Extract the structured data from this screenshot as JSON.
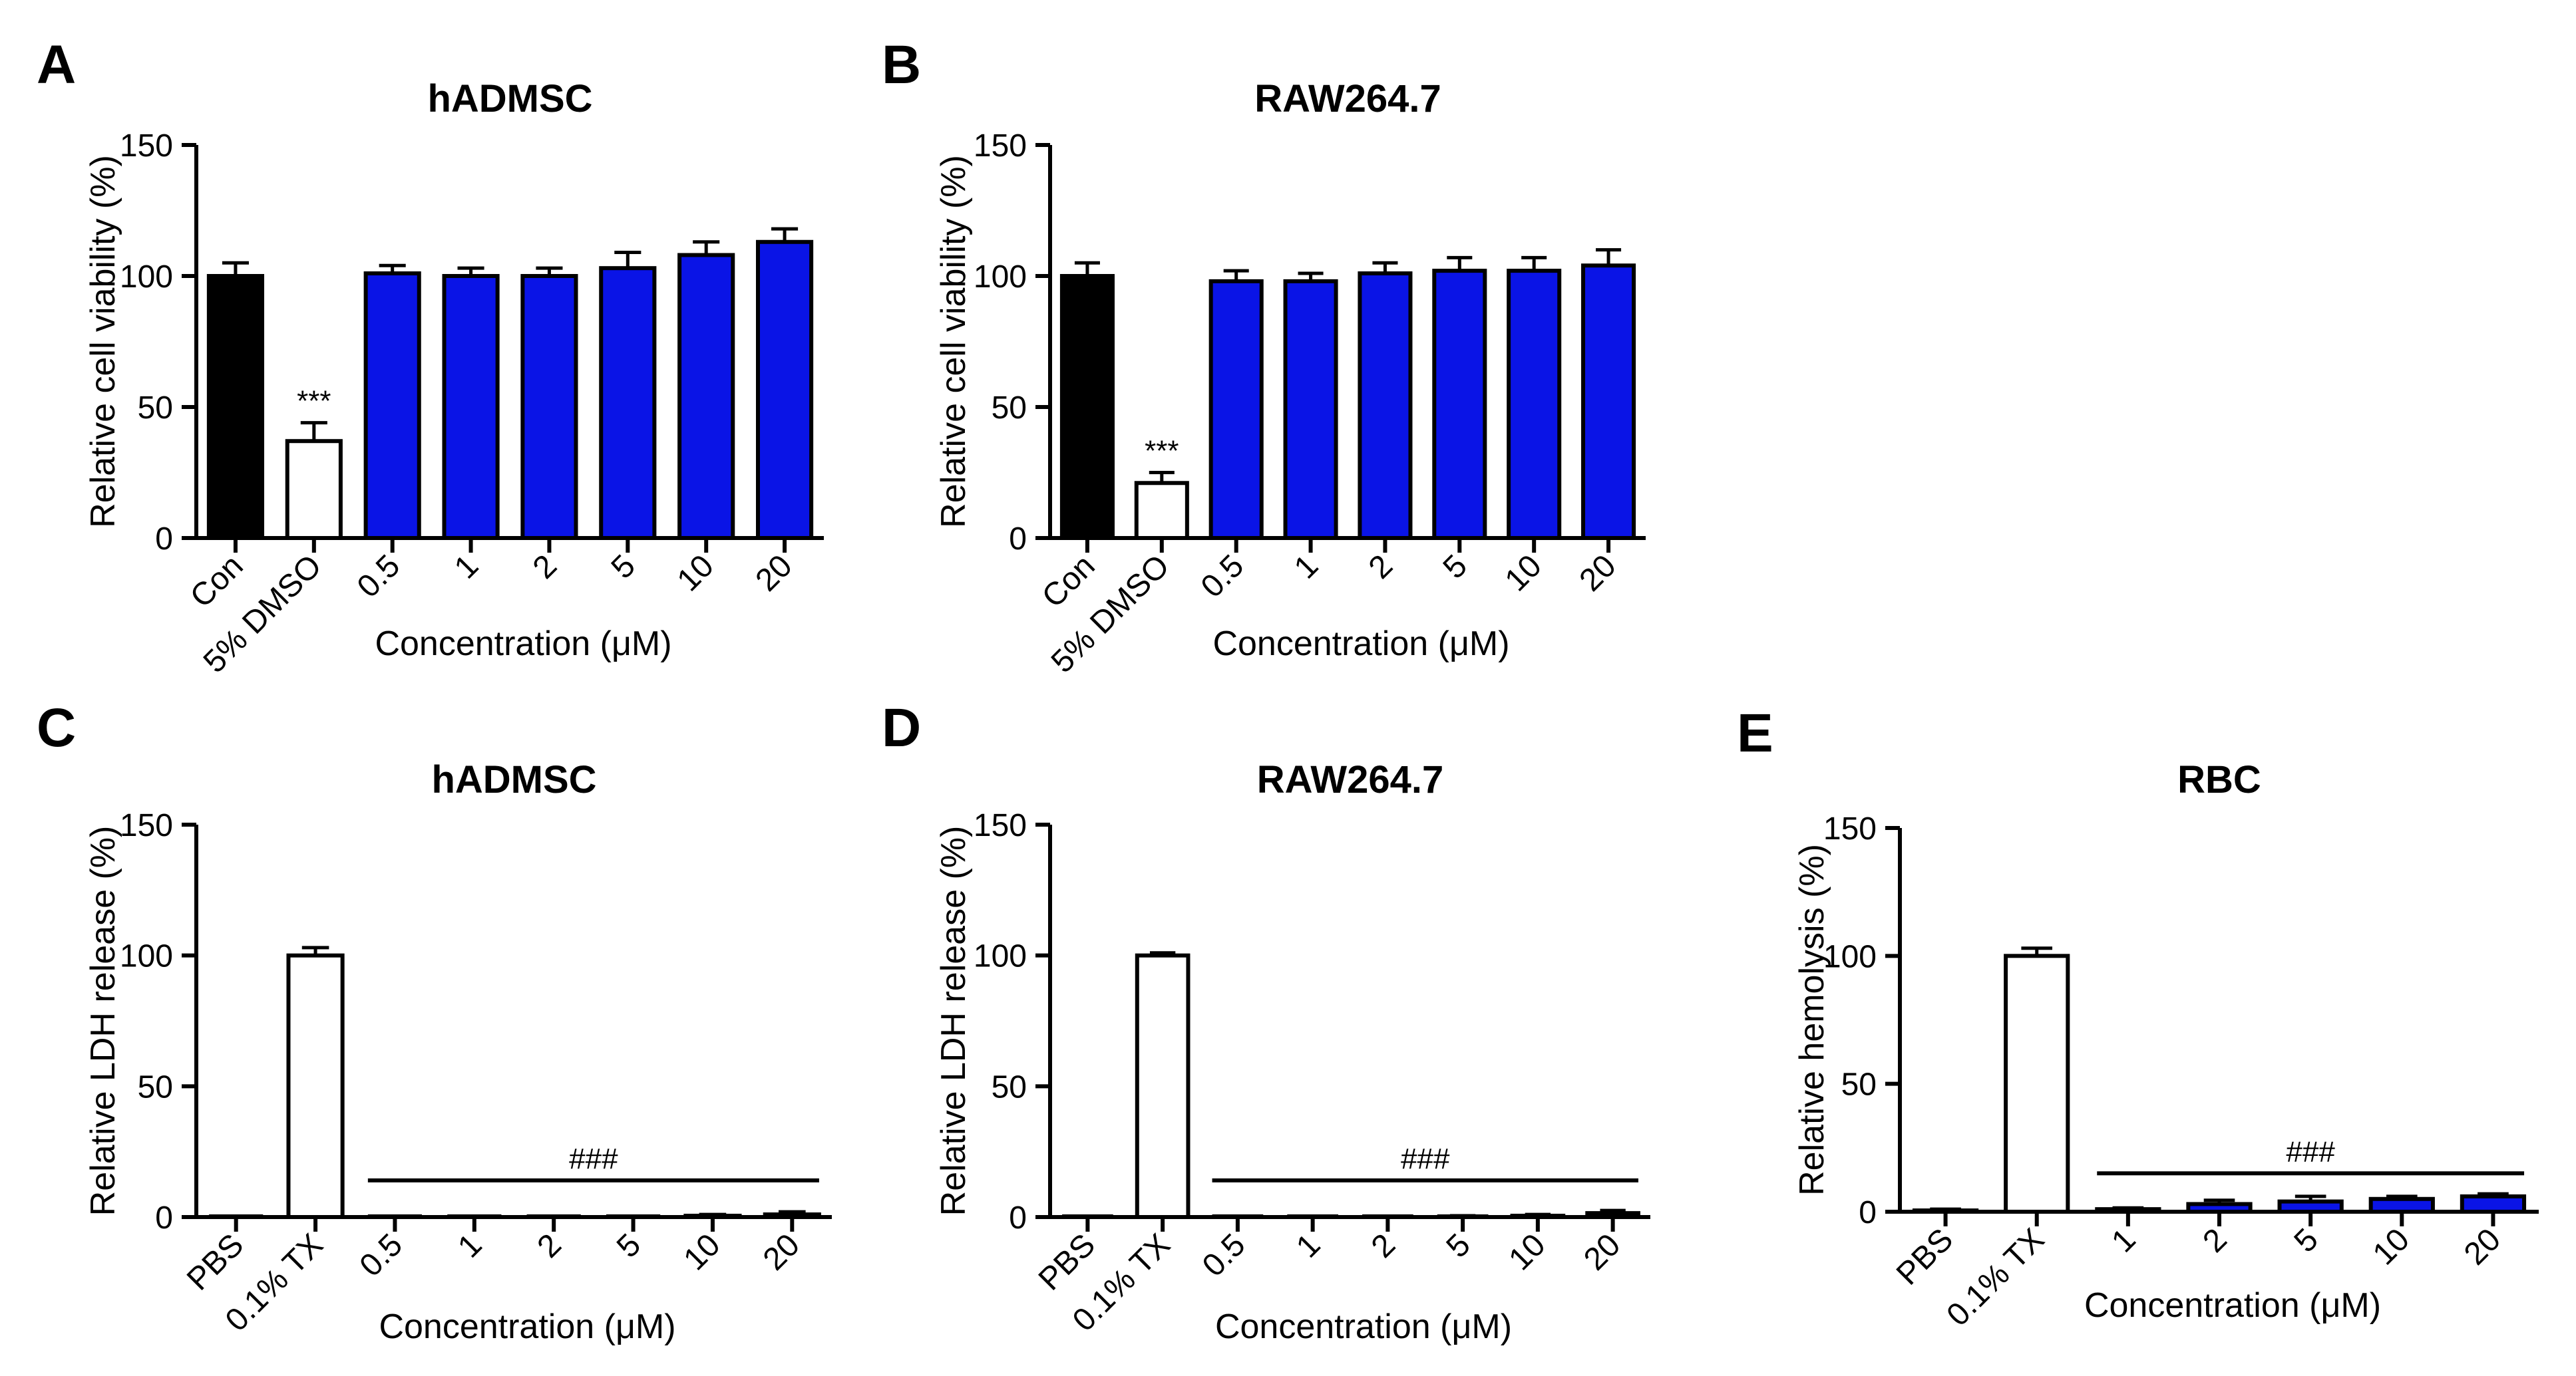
{
  "chart_data": [
    {
      "panel": "A",
      "type": "bar",
      "title": "hADMSC",
      "xlabel": "Concentration (μM)",
      "ylabel": "Relative cell viability (%)",
      "ylim": [
        0,
        150
      ],
      "yticks": [
        "0",
        "50",
        "100",
        "150"
      ],
      "categories": [
        "Con",
        "5% DMSO",
        "0.5",
        "1",
        "2",
        "5",
        "10",
        "20"
      ],
      "values": [
        100,
        37,
        101,
        100,
        100,
        103,
        108,
        113
      ],
      "errors": [
        5,
        7,
        3,
        3,
        3,
        6,
        5,
        5
      ],
      "colors": [
        "#000000",
        "#ffffff",
        "#0a14e6",
        "#0a14e6",
        "#0a14e6",
        "#0a14e6",
        "#0a14e6",
        "#0a14e6"
      ],
      "annotations": [
        {
          "text": "***",
          "category_index": 1
        }
      ]
    },
    {
      "panel": "B",
      "type": "bar",
      "title": "RAW264.7",
      "xlabel": "Concentration (μM)",
      "ylabel": "Relative cell viability (%)",
      "ylim": [
        0,
        150
      ],
      "yticks": [
        "0",
        "50",
        "100",
        "150"
      ],
      "categories": [
        "Con",
        "5% DMSO",
        "0.5",
        "1",
        "2",
        "5",
        "10",
        "20"
      ],
      "values": [
        100,
        21,
        98,
        98,
        101,
        102,
        102,
        104
      ],
      "errors": [
        5,
        4,
        4,
        3,
        4,
        5,
        5,
        6
      ],
      "colors": [
        "#000000",
        "#ffffff",
        "#0a14e6",
        "#0a14e6",
        "#0a14e6",
        "#0a14e6",
        "#0a14e6",
        "#0a14e6"
      ],
      "annotations": [
        {
          "text": "***",
          "category_index": 1
        }
      ]
    },
    {
      "panel": "C",
      "type": "bar",
      "title": "hADMSC",
      "xlabel": "Concentration (μM)",
      "ylabel": "Relative LDH release (%)",
      "ylim": [
        0,
        150
      ],
      "yticks": [
        "0",
        "50",
        "100",
        "150"
      ],
      "categories": [
        "PBS",
        "0.1% TX",
        "0.5",
        "1",
        "2",
        "5",
        "10",
        "20"
      ],
      "values": [
        0,
        100,
        0,
        0,
        0,
        0,
        0.5,
        1
      ],
      "errors": [
        0,
        3,
        0,
        0,
        0,
        0,
        0.5,
        1
      ],
      "colors": [
        "#000000",
        "#ffffff",
        "#0a14e6",
        "#0a14e6",
        "#0a14e6",
        "#0a14e6",
        "#0a14e6",
        "#0a14e6"
      ],
      "bracket": {
        "text": "###",
        "from_index": 2,
        "to_index": 7,
        "y": 14
      }
    },
    {
      "panel": "D",
      "type": "bar",
      "title": "RAW264.7",
      "xlabel": "Concentration (μM)",
      "ylabel": "Relative LDH release (%)",
      "ylim": [
        0,
        150
      ],
      "yticks": [
        "0",
        "50",
        "100",
        "150"
      ],
      "categories": [
        "PBS",
        "0.1% TX",
        "0.5",
        "1",
        "2",
        "5",
        "10",
        "20"
      ],
      "values": [
        0,
        100,
        0,
        0,
        0,
        0,
        0.5,
        1.5
      ],
      "errors": [
        0,
        1,
        0,
        0,
        0,
        0.5,
        0.5,
        1
      ],
      "colors": [
        "#000000",
        "#ffffff",
        "#0a14e6",
        "#0a14e6",
        "#0a14e6",
        "#0a14e6",
        "#0a14e6",
        "#0a14e6"
      ],
      "bracket": {
        "text": "###",
        "from_index": 2,
        "to_index": 7,
        "y": 14
      }
    },
    {
      "panel": "E",
      "type": "bar",
      "title": "RBC",
      "xlabel": "Concentration (μM)",
      "ylabel": "Relative hemolysis (%)",
      "ylim": [
        0,
        150
      ],
      "yticks": [
        "0",
        "50",
        "100",
        "150"
      ],
      "categories": [
        "PBS",
        "0.1% TX",
        "1",
        "2",
        "5",
        "10",
        "20"
      ],
      "values": [
        0.5,
        100,
        1,
        3,
        4,
        5,
        6
      ],
      "errors": [
        0.5,
        3,
        0.5,
        1.5,
        2,
        1,
        1
      ],
      "colors": [
        "#000000",
        "#ffffff",
        "#0a14e6",
        "#0a14e6",
        "#0a14e6",
        "#0a14e6",
        "#0a14e6"
      ],
      "bracket": {
        "text": "###",
        "from_index": 2,
        "to_index": 6,
        "y": 15
      }
    }
  ]
}
